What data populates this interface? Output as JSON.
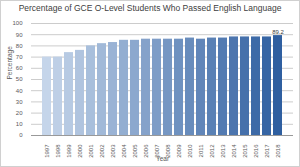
{
  "chart_data": {
    "type": "bar",
    "title": "Percentage of GCE O-Level Students Who Passed English Language",
    "x_label": "Year",
    "y_label": "Percentage",
    "categories": [
      "1997",
      "1998",
      "1999",
      "2000",
      "2001",
      "2002",
      "2003",
      "2004",
      "2005",
      "2006",
      "2007",
      "2008",
      "2009",
      "2010",
      "2011",
      "2012",
      "2013",
      "2014",
      "2015",
      "2016",
      "2017",
      "2018"
    ],
    "values": [
      70,
      70,
      74,
      76,
      80,
      82,
      83,
      85,
      85,
      86,
      86,
      86,
      86,
      87,
      86,
      87,
      87,
      88,
      88,
      88,
      88,
      89.2
    ],
    "value_labels": [
      null,
      null,
      null,
      null,
      null,
      null,
      null,
      null,
      null,
      null,
      null,
      null,
      null,
      null,
      null,
      null,
      null,
      null,
      null,
      null,
      null,
      "89.2"
    ],
    "colors": [
      "#c5d5ea",
      "#becfe6",
      "#b7cae3",
      "#b0c4df",
      "#a8bfdc",
      "#a1b9d8",
      "#9ab3d5",
      "#93aed1",
      "#8ca8ce",
      "#85a2ca",
      "#7e9dc7",
      "#7697c3",
      "#6f92c0",
      "#688cbc",
      "#6186b9",
      "#5a81b5",
      "#537bb2",
      "#4c75ae",
      "#4570ab",
      "#3d6aa7",
      "#3665a4",
      "#2f5fa0"
    ],
    "ylim": [
      0,
      100
    ],
    "yticks": [
      0,
      10,
      20,
      30,
      40,
      50,
      60,
      70,
      80,
      90,
      100
    ],
    "grid": true
  }
}
